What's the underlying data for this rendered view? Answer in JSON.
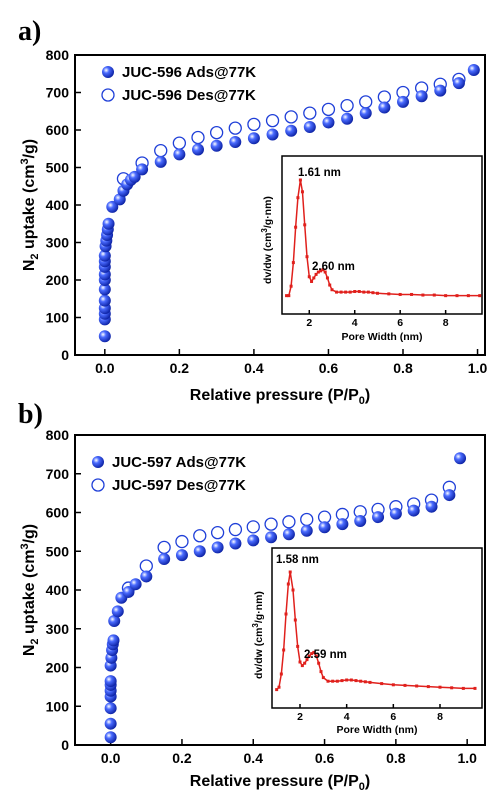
{
  "chart_data": [
    {
      "panel": "a)",
      "type": "scatter",
      "xlabel": "Relative pressure (P/P0)",
      "ylabel": "N2 uptake (cm3/g)",
      "xlim": [
        -0.08,
        1.02
      ],
      "ylim": [
        0,
        800
      ],
      "xticks": [
        "0.0",
        "0.2",
        "0.4",
        "0.6",
        "0.8",
        "1.0"
      ],
      "yticks": [
        "0",
        "100",
        "200",
        "300",
        "400",
        "500",
        "600",
        "700",
        "800"
      ],
      "legend": {
        "position": "top-left"
      },
      "series": [
        {
          "name": "JUC-596 Ads@77K",
          "marker": "filled-circle",
          "color": "#1f3fd8",
          "x": [
            0.0,
            0.0,
            0.0,
            0.0,
            0.0,
            0.0,
            0.0,
            0.0,
            0.0,
            0.0,
            0.0,
            0.002,
            0.004,
            0.006,
            0.008,
            0.01,
            0.02,
            0.04,
            0.05,
            0.06,
            0.07,
            0.08,
            0.1,
            0.15,
            0.2,
            0.25,
            0.3,
            0.35,
            0.4,
            0.45,
            0.5,
            0.55,
            0.6,
            0.65,
            0.7,
            0.75,
            0.8,
            0.85,
            0.9,
            0.95,
            0.99
          ],
          "y": [
            50,
            95,
            110,
            125,
            145,
            175,
            200,
            215,
            235,
            250,
            265,
            290,
            305,
            320,
            335,
            350,
            395,
            415,
            438,
            455,
            467,
            475,
            495,
            515,
            535,
            548,
            558,
            568,
            578,
            588,
            598,
            608,
            620,
            630,
            645,
            660,
            675,
            690,
            705,
            725,
            760
          ]
        },
        {
          "name": "JUC-596 Des@77K",
          "marker": "open-circle",
          "color": "#1f3fd8",
          "x": [
            0.05,
            0.1,
            0.15,
            0.2,
            0.25,
            0.3,
            0.35,
            0.4,
            0.45,
            0.5,
            0.55,
            0.6,
            0.65,
            0.7,
            0.75,
            0.8,
            0.85,
            0.9,
            0.95
          ],
          "y": [
            470,
            512,
            545,
            565,
            580,
            593,
            605,
            615,
            625,
            635,
            645,
            655,
            665,
            675,
            688,
            700,
            712,
            722,
            735
          ]
        }
      ],
      "inset": {
        "type": "line",
        "xlabel": "Pore Width (nm)",
        "ylabel": "dv/dw (cm3/g·nm)",
        "xlim": [
          0.8,
          9.6
        ],
        "xticks": [
          "2",
          "4",
          "6",
          "8"
        ],
        "annotations": [
          "1.61 nm",
          "2.60 nm"
        ],
        "color": "#e0201c",
        "x": [
          1.0,
          1.1,
          1.2,
          1.3,
          1.4,
          1.5,
          1.61,
          1.7,
          1.8,
          1.9,
          2.0,
          2.1,
          2.2,
          2.3,
          2.4,
          2.5,
          2.6,
          2.7,
          2.8,
          2.9,
          3.0,
          3.2,
          3.4,
          3.6,
          3.8,
          4.0,
          4.2,
          4.4,
          4.6,
          4.8,
          5.0,
          5.5,
          6.0,
          6.5,
          7.0,
          7.5,
          8.0,
          8.5,
          9.0,
          9.5
        ],
        "y": [
          0.02,
          0.02,
          0.1,
          0.3,
          0.6,
          0.85,
          1.0,
          0.9,
          0.62,
          0.35,
          0.18,
          0.14,
          0.17,
          0.2,
          0.22,
          0.23,
          0.24,
          0.22,
          0.17,
          0.11,
          0.07,
          0.05,
          0.05,
          0.05,
          0.05,
          0.055,
          0.055,
          0.05,
          0.05,
          0.045,
          0.04,
          0.035,
          0.03,
          0.03,
          0.025,
          0.025,
          0.02,
          0.02,
          0.02,
          0.02
        ]
      }
    },
    {
      "panel": "b)",
      "type": "scatter",
      "xlabel": "Relative pressure (P/P0)",
      "ylabel": "N2 uptake (cm3/g)",
      "xlim": [
        -0.1,
        1.05
      ],
      "ylim": [
        0,
        800
      ],
      "xticks": [
        "0.0",
        "0.2",
        "0.4",
        "0.6",
        "0.8",
        "1.0"
      ],
      "yticks": [
        "0",
        "100",
        "200",
        "300",
        "400",
        "500",
        "600",
        "700",
        "800"
      ],
      "legend": {
        "position": "top-left"
      },
      "series": [
        {
          "name": "JUC-597 Ads@77K",
          "marker": "filled-circle",
          "color": "#1f3fd8",
          "x": [
            0.0,
            0.0,
            0.0,
            0.0,
            0.0,
            0.0,
            0.0,
            0.0,
            0.002,
            0.004,
            0.006,
            0.008,
            0.01,
            0.02,
            0.03,
            0.05,
            0.07,
            0.1,
            0.15,
            0.2,
            0.25,
            0.3,
            0.35,
            0.4,
            0.45,
            0.5,
            0.55,
            0.6,
            0.65,
            0.7,
            0.75,
            0.8,
            0.85,
            0.9,
            0.95,
            0.98
          ],
          "y": [
            20,
            55,
            95,
            125,
            140,
            155,
            165,
            205,
            225,
            245,
            260,
            270,
            320,
            345,
            380,
            395,
            415,
            435,
            480,
            490,
            500,
            510,
            520,
            528,
            536,
            544,
            553,
            562,
            570,
            578,
            588,
            597,
            605,
            615,
            645,
            740
          ]
        },
        {
          "name": "JUC-597 Des@77K",
          "marker": "open-circle",
          "color": "#1f3fd8",
          "x": [
            0.05,
            0.1,
            0.15,
            0.2,
            0.25,
            0.3,
            0.35,
            0.4,
            0.45,
            0.5,
            0.55,
            0.6,
            0.65,
            0.7,
            0.75,
            0.8,
            0.85,
            0.9,
            0.95
          ],
          "y": [
            405,
            462,
            510,
            525,
            540,
            548,
            556,
            563,
            570,
            576,
            582,
            588,
            595,
            602,
            608,
            615,
            622,
            632,
            665
          ]
        }
      ],
      "inset": {
        "type": "line",
        "xlabel": "Pore Width (nm)",
        "ylabel": "dv/dw (cm3/g·nm)",
        "xlim": [
          0.8,
          9.8
        ],
        "xticks": [
          "2",
          "4",
          "6",
          "8"
        ],
        "annotations": [
          "1.58 nm",
          "2.59 nm"
        ],
        "color": "#e0201c",
        "x": [
          1.0,
          1.1,
          1.2,
          1.3,
          1.4,
          1.5,
          1.58,
          1.7,
          1.8,
          1.9,
          2.0,
          2.1,
          2.2,
          2.3,
          2.4,
          2.5,
          2.59,
          2.7,
          2.8,
          2.9,
          3.0,
          3.2,
          3.4,
          3.6,
          3.8,
          4.0,
          4.2,
          4.4,
          4.6,
          4.8,
          5.0,
          5.5,
          6.0,
          6.5,
          7.0,
          7.5,
          8.0,
          8.5,
          9.0,
          9.5
        ],
        "y": [
          0.02,
          0.04,
          0.15,
          0.35,
          0.65,
          0.9,
          1.0,
          0.85,
          0.6,
          0.38,
          0.25,
          0.22,
          0.24,
          0.27,
          0.3,
          0.32,
          0.33,
          0.3,
          0.24,
          0.17,
          0.12,
          0.09,
          0.09,
          0.09,
          0.095,
          0.1,
          0.1,
          0.095,
          0.09,
          0.085,
          0.08,
          0.07,
          0.06,
          0.055,
          0.05,
          0.045,
          0.04,
          0.035,
          0.03,
          0.03
        ]
      }
    }
  ]
}
